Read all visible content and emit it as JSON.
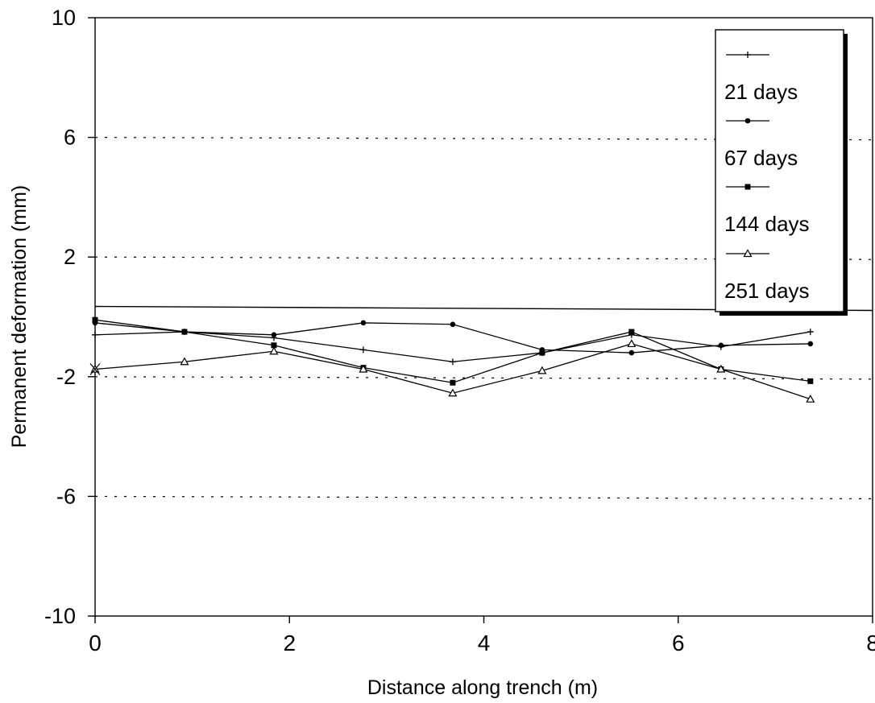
{
  "chart_data": {
    "type": "line",
    "title": "",
    "xlabel": "Distance along trench (m)",
    "ylabel": "Permanent deformation (mm)",
    "xlim": [
      0,
      8
    ],
    "ylim": [
      -10,
      10
    ],
    "xticks": [
      "0",
      "2",
      "4",
      "6",
      "8"
    ],
    "yticks": [
      "10",
      "6",
      "2",
      "-2",
      "-6",
      "-10"
    ],
    "grid": "dotted horizontal lines",
    "legend_position": "top-right",
    "legend": [
      "",
      "21 days",
      "67 days",
      "144 days",
      "251 days"
    ],
    "series": [
      {
        "name": "21 days",
        "marker": "plus",
        "x": [
          0,
          0.92,
          1.84,
          2.76,
          3.68,
          4.6,
          5.52,
          6.44,
          7.36
        ],
        "y": [
          -0.6,
          -0.5,
          -0.7,
          -1.1,
          -1.5,
          -1.2,
          -0.6,
          -1.0,
          -0.5
        ]
      },
      {
        "name": "67 days",
        "marker": "circle",
        "x": [
          0,
          0.92,
          1.84,
          2.76,
          3.68,
          4.6,
          5.52,
          6.44,
          7.36
        ],
        "y": [
          -0.2,
          -0.5,
          -0.6,
          -0.2,
          -0.25,
          -1.1,
          -1.2,
          -0.95,
          -0.9
        ]
      },
      {
        "name": "144 days",
        "marker": "square",
        "x": [
          0,
          0.92,
          1.84,
          2.76,
          3.68,
          4.6,
          5.52,
          6.44,
          7.36
        ],
        "y": [
          -0.1,
          -0.5,
          -0.95,
          -1.7,
          -2.2,
          -1.2,
          -0.5,
          -1.75,
          -2.15
        ]
      },
      {
        "name": "251 days",
        "marker": "triangle",
        "x": [
          0,
          0.92,
          1.84,
          2.76,
          3.68,
          4.6,
          5.52,
          6.44,
          7.36
        ],
        "y": [
          -1.75,
          -1.5,
          -1.15,
          -1.75,
          -2.55,
          -1.8,
          -0.9,
          -1.75,
          -2.75
        ]
      }
    ]
  }
}
